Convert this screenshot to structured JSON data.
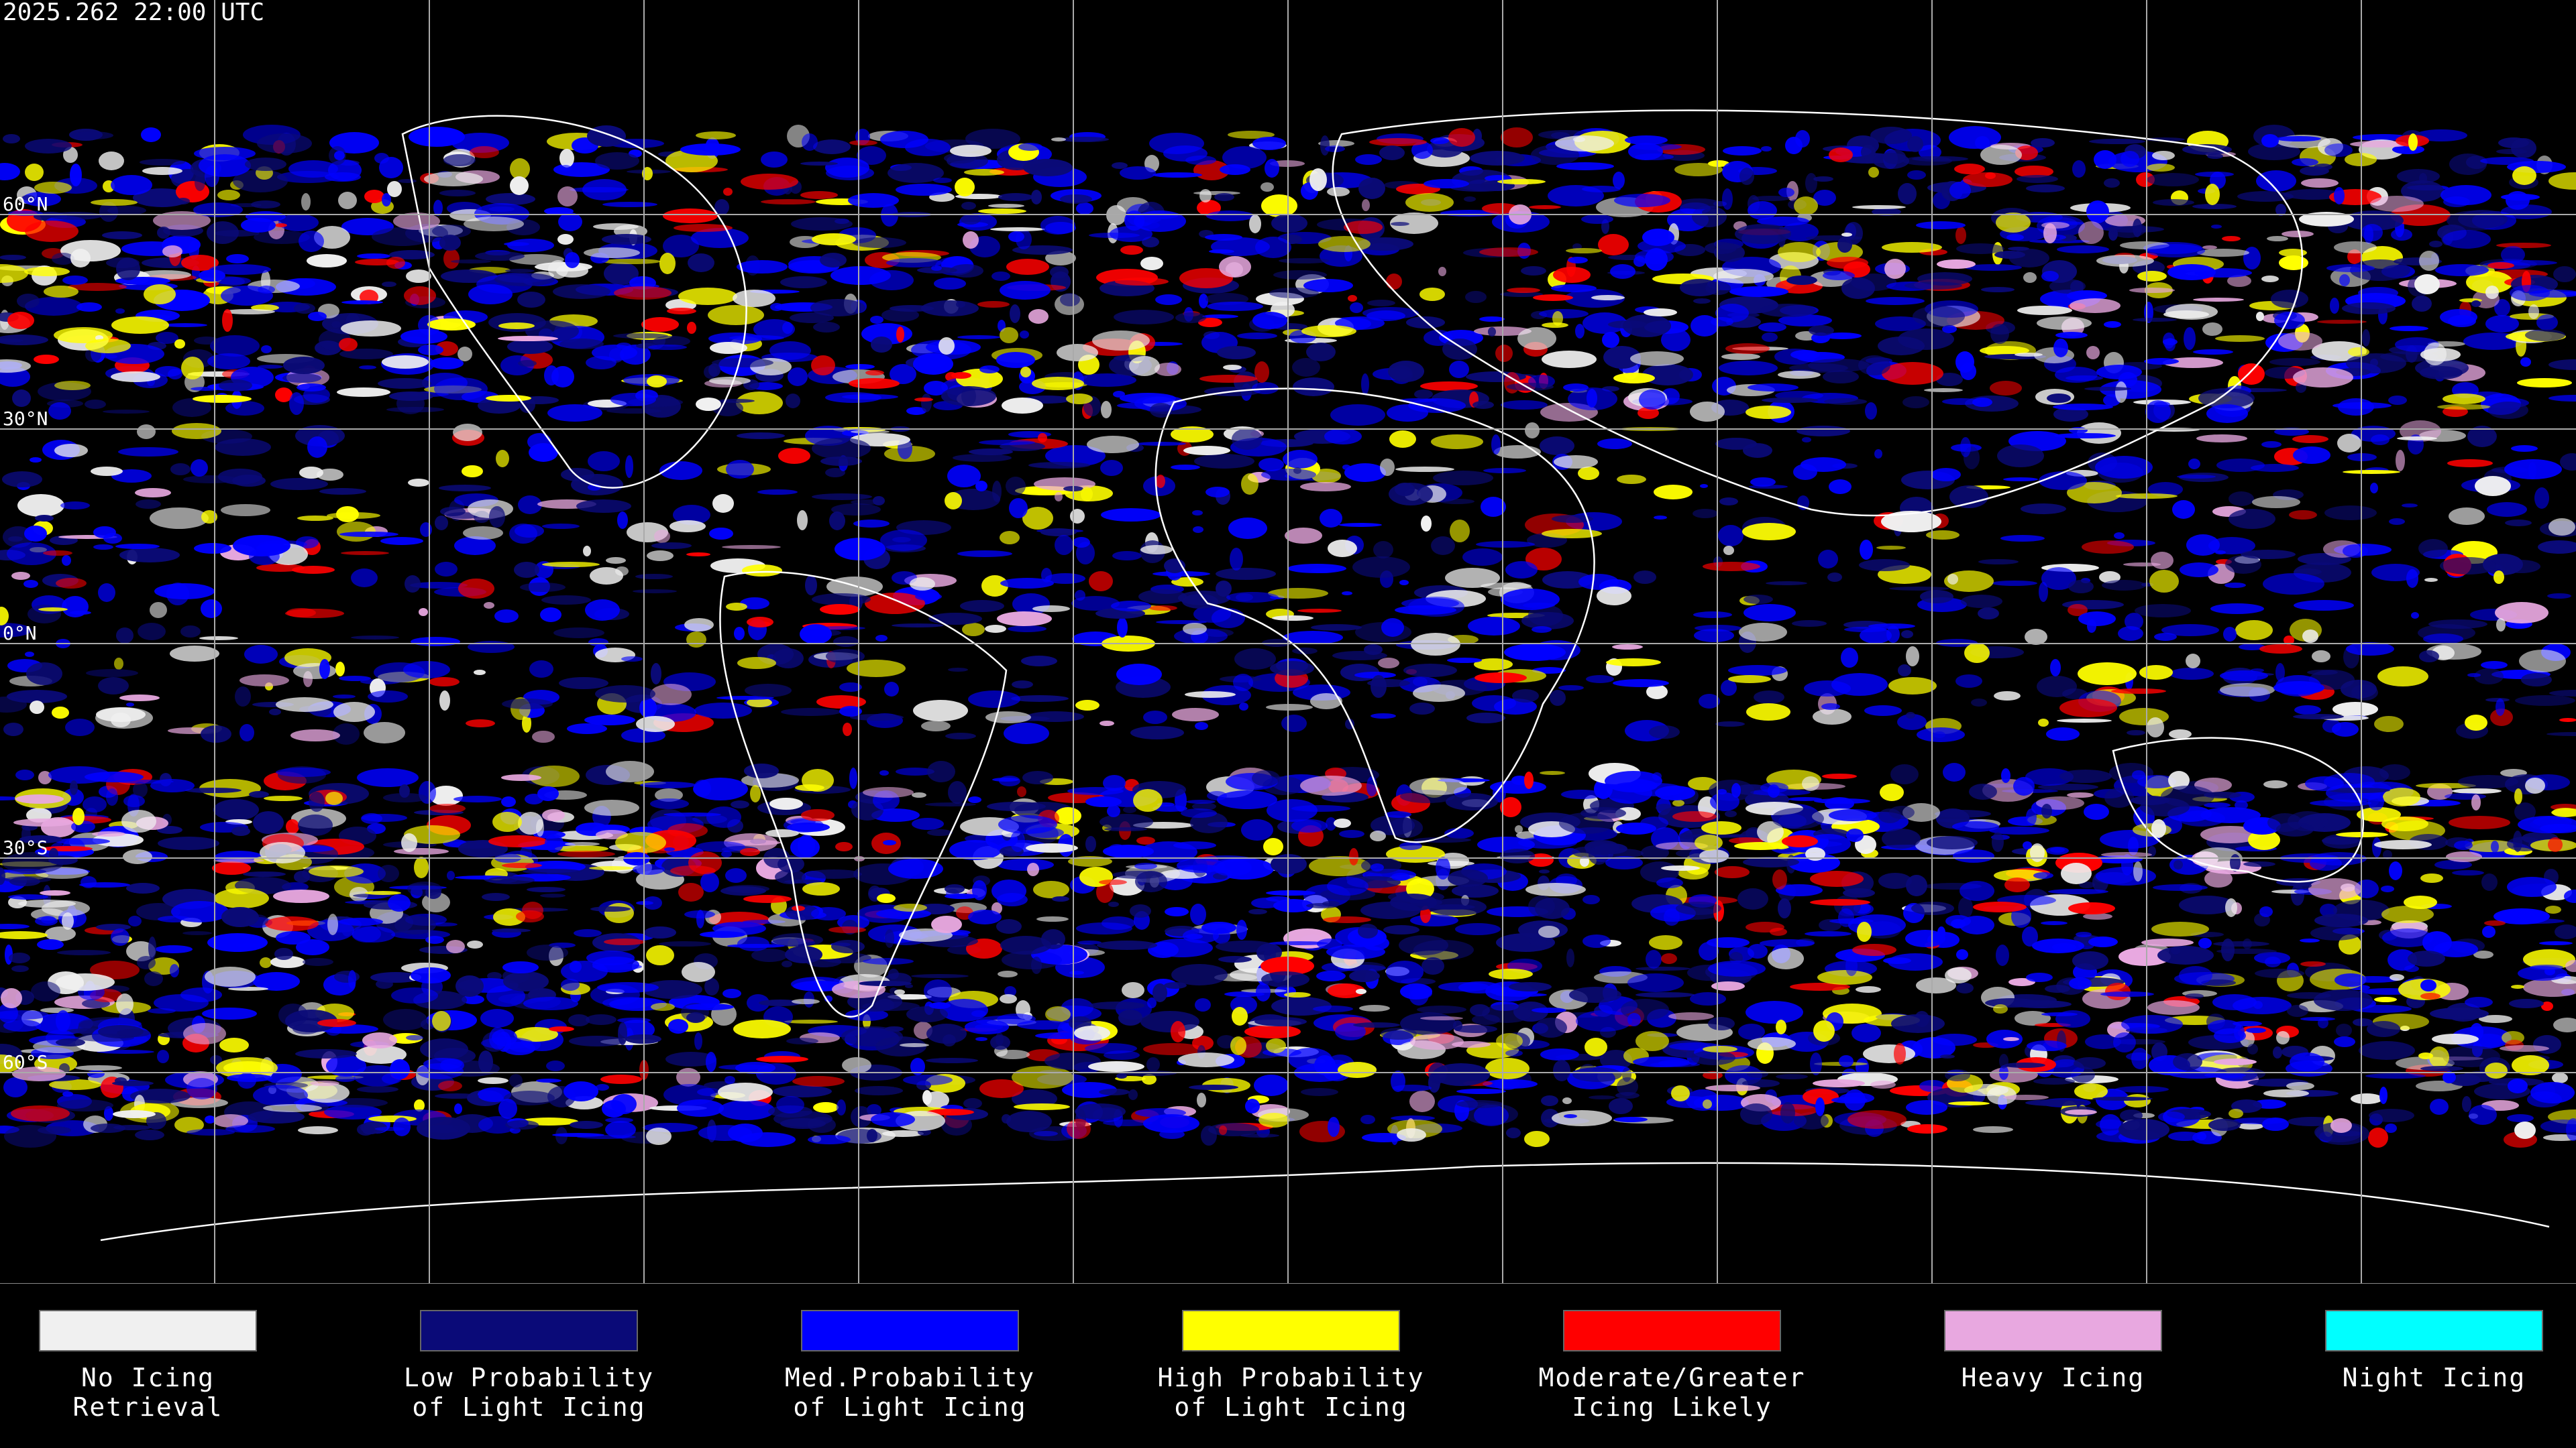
{
  "timestamp": "2025.262 22:00 UTC",
  "latitude_labels": [
    "60°N",
    "30°N",
    "0°N",
    "30°S",
    "60°S"
  ],
  "legend": [
    {
      "lines": [
        "No Icing",
        "Retrieval"
      ],
      "color": "#f0f0f0"
    },
    {
      "lines": [
        "Low Probability",
        "of Light Icing"
      ],
      "color": "#0a0a78"
    },
    {
      "lines": [
        "Med.Probability",
        "of Light Icing"
      ],
      "color": "#0000ff"
    },
    {
      "lines": [
        "High Probability",
        "of Light Icing"
      ],
      "color": "#ffff00"
    },
    {
      "lines": [
        "Moderate/Greater",
        "Icing Likely"
      ],
      "color": "#ff0000"
    },
    {
      "lines": [
        "Heavy Icing"
      ],
      "color": "#e8a8e0"
    },
    {
      "lines": [
        "Night Icing"
      ],
      "color": "#00ffff"
    }
  ]
}
